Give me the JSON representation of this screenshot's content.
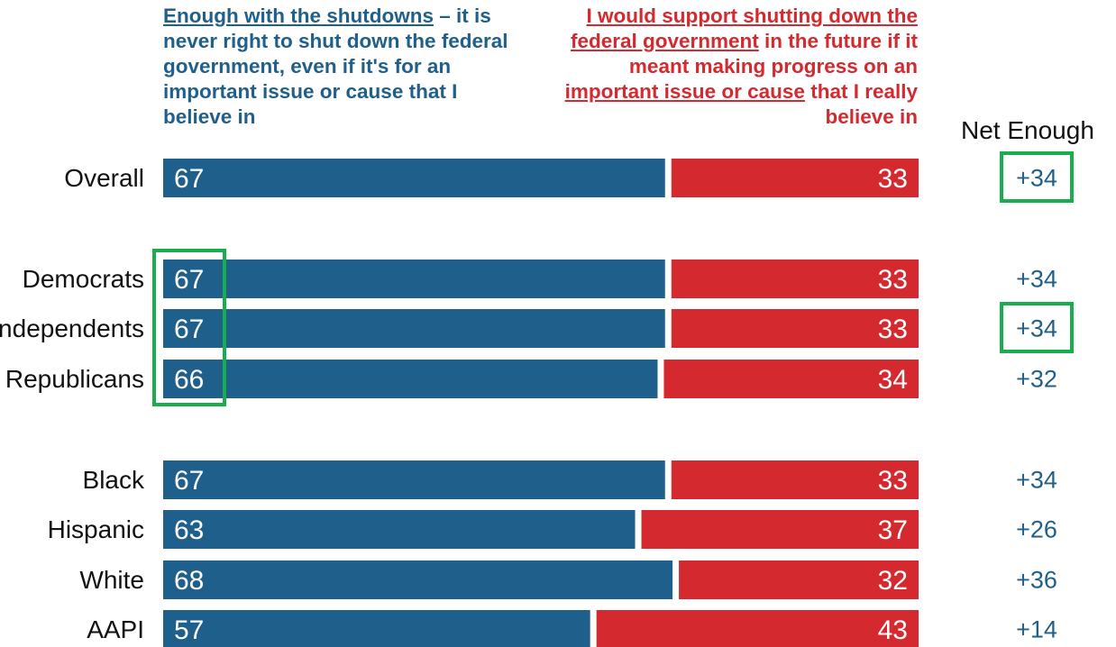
{
  "chart_data": {
    "type": "bar",
    "stacked": true,
    "orientation": "horizontal",
    "header_left_segments": [
      {
        "text": "Enough with the shutdowns",
        "underline": true
      },
      {
        "text": " – it is never right to shut down the federal government, even if it's for an important issue or cause that I believe in",
        "underline": false
      }
    ],
    "header_right_segments": [
      {
        "text": "I would support shutting down the federal government",
        "underline": true
      },
      {
        "text": " in the future if it meant making progress on an ",
        "underline": false
      },
      {
        "text": "important issue or cause",
        "underline": true
      },
      {
        "text": " that I really believe in",
        "underline": false
      }
    ],
    "net_title": "Net Enough",
    "categories": [
      "Overall",
      "Democrats",
      "Independents",
      "Republicans",
      "Black",
      "Hispanic",
      "White",
      "AAPI"
    ],
    "series": [
      {
        "values": [
          67,
          67,
          67,
          66,
          67,
          63,
          68,
          57
        ]
      },
      {
        "values": [
          33,
          33,
          33,
          34,
          33,
          37,
          32,
          43
        ]
      }
    ],
    "net_values": [
      "+34",
      "+34",
      "+34",
      "+32",
      "+34",
      "+26",
      "+36",
      "+14"
    ],
    "xlim": [
      0,
      100
    ],
    "highlighted_net": [
      "Overall",
      "Independents"
    ],
    "highlighted_enough": [
      "Democrats",
      "Independents",
      "Republicans"
    ],
    "colors": {
      "enough": "#1f5f8b",
      "support": "#d42a2f",
      "net": "#1f5f8b",
      "highlight": "#1aad4f"
    }
  }
}
